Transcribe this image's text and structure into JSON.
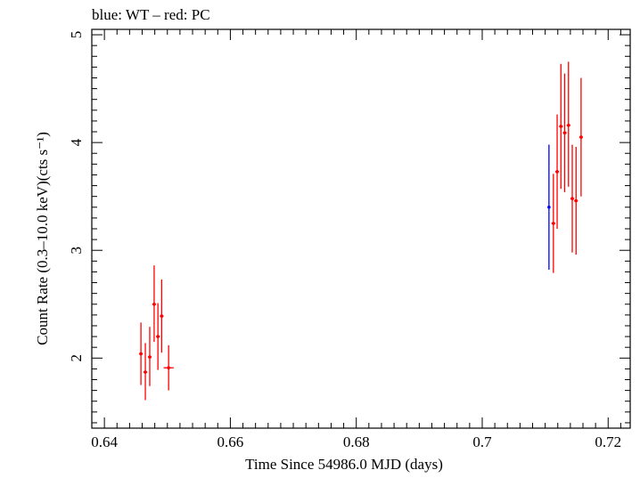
{
  "chart_data": {
    "type": "scatter",
    "title": "blue: WT – red: PC",
    "xlabel": "Time Since 54986.0 MJD (days)",
    "ylabel": "Count Rate (0.3–10.0 keV)(cts s⁻¹)",
    "xlim": [
      0.638,
      0.7235
    ],
    "ylim": [
      1.35,
      5.05
    ],
    "x_ticks": [
      0.64,
      0.66,
      0.68,
      0.7,
      0.72
    ],
    "x_tick_labels": [
      "0.64",
      "0.66",
      "0.68",
      "0.7",
      "0.72"
    ],
    "y_ticks": [
      2,
      3,
      4,
      5
    ],
    "y_tick_labels": [
      "2",
      "3",
      "4",
      "5"
    ],
    "grid": false,
    "series": [
      {
        "name": "WT",
        "color": "#0000ff",
        "points": [
          {
            "x": 0.7106,
            "y": 3.4,
            "xerr": 0.0001,
            "ylo": 2.82,
            "yhi": 3.98
          }
        ]
      },
      {
        "name": "PC",
        "color": "#ff0000",
        "points": [
          {
            "x": 0.6458,
            "y": 2.04,
            "xerr": 0.0003,
            "ylo": 1.75,
            "yhi": 2.33
          },
          {
            "x": 0.6465,
            "y": 1.87,
            "xerr": 0.0003,
            "ylo": 1.61,
            "yhi": 2.14
          },
          {
            "x": 0.6472,
            "y": 2.01,
            "xerr": 0.0003,
            "ylo": 1.74,
            "yhi": 2.29
          },
          {
            "x": 0.6479,
            "y": 2.5,
            "xerr": 0.0003,
            "ylo": 2.15,
            "yhi": 2.86
          },
          {
            "x": 0.6485,
            "y": 2.2,
            "xerr": 0.0003,
            "ylo": 1.89,
            "yhi": 2.51
          },
          {
            "x": 0.6491,
            "y": 2.39,
            "xerr": 0.0003,
            "ylo": 2.05,
            "yhi": 2.73
          },
          {
            "x": 0.6502,
            "y": 1.91,
            "xerr": 0.0008,
            "ylo": 1.7,
            "yhi": 2.12
          },
          {
            "x": 0.7113,
            "y": 3.25,
            "xerr": 0.0003,
            "ylo": 2.79,
            "yhi": 3.71
          },
          {
            "x": 0.7119,
            "y": 3.73,
            "xerr": 0.0003,
            "ylo": 3.2,
            "yhi": 4.26
          },
          {
            "x": 0.7125,
            "y": 4.15,
            "xerr": 0.0003,
            "ylo": 3.57,
            "yhi": 4.73
          },
          {
            "x": 0.7131,
            "y": 4.09,
            "xerr": 0.0003,
            "ylo": 3.54,
            "yhi": 4.64
          },
          {
            "x": 0.7137,
            "y": 4.16,
            "xerr": 0.0003,
            "ylo": 3.59,
            "yhi": 4.75
          },
          {
            "x": 0.7143,
            "y": 3.48,
            "xerr": 0.0003,
            "ylo": 2.98,
            "yhi": 3.98
          },
          {
            "x": 0.7149,
            "y": 3.46,
            "xerr": 0.0003,
            "ylo": 2.96,
            "yhi": 3.96
          },
          {
            "x": 0.7157,
            "y": 4.05,
            "xerr": 0.0003,
            "ylo": 3.5,
            "yhi": 4.6
          }
        ]
      }
    ]
  }
}
